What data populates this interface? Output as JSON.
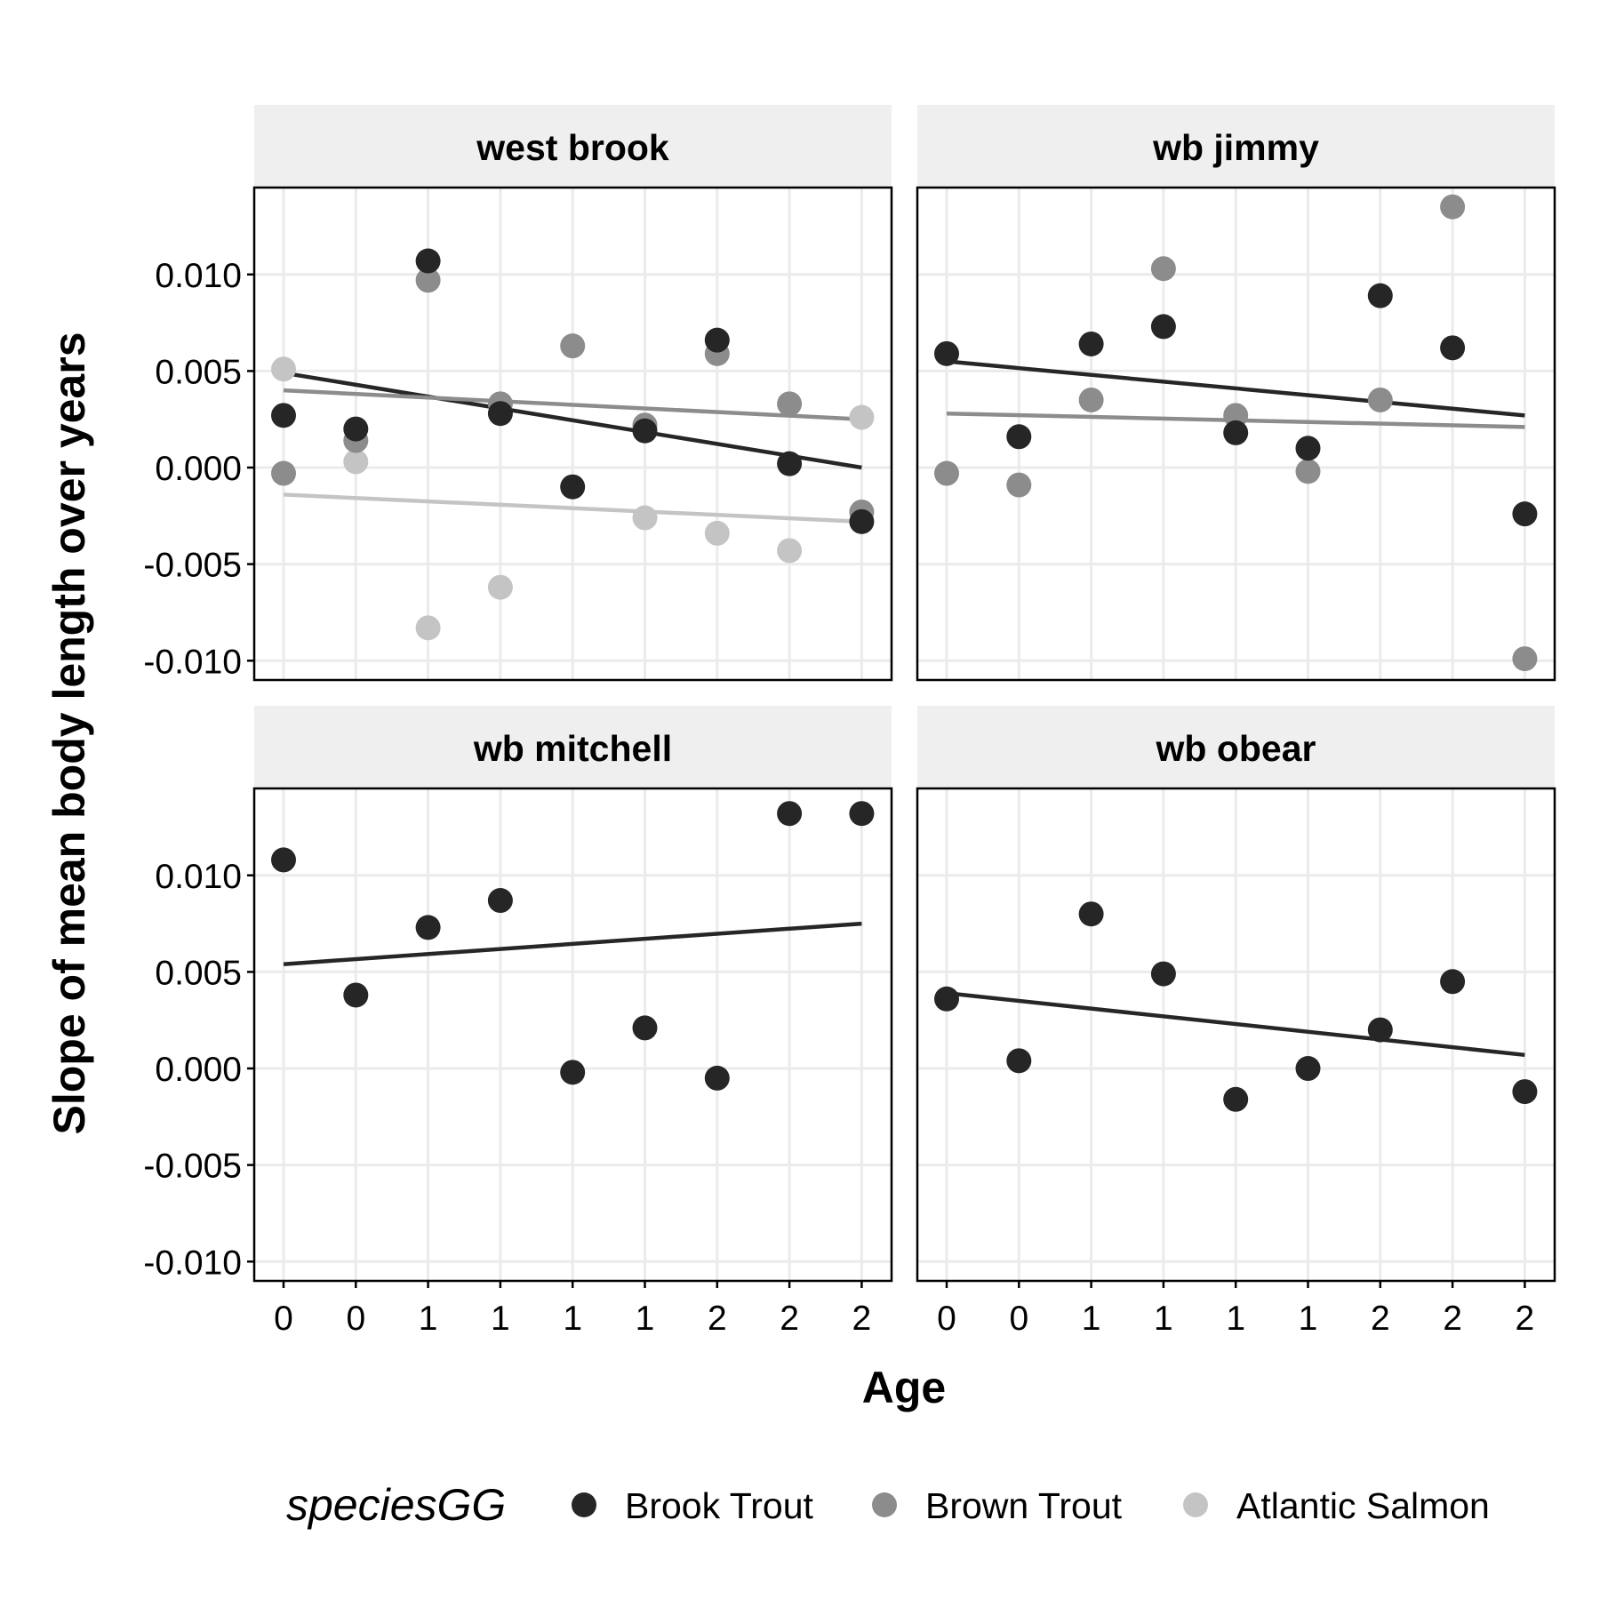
{
  "chart_data": {
    "type": "scatter",
    "xlabel": "Age",
    "ylabel": "Slope of mean body length over years",
    "x_tick_labels": [
      "0",
      "0",
      "1",
      "1",
      "1",
      "1",
      "2",
      "2",
      "2"
    ],
    "y_ticks": [
      -0.01,
      -0.005,
      0.0,
      0.005,
      0.01
    ],
    "y_tick_labels": [
      "-0.010",
      "-0.005",
      "0.000",
      "0.005",
      "0.010"
    ],
    "ylim": [
      -0.011,
      0.0145
    ],
    "grid": true,
    "legend": {
      "title": "speciesGG",
      "position": "bottom",
      "entries": [
        {
          "label": "Brook Trout",
          "color": "#262626"
        },
        {
          "label": "Brown Trout",
          "color": "#8c8c8c"
        },
        {
          "label": "Atlantic Salmon",
          "color": "#c4c4c4"
        }
      ]
    },
    "panels": [
      {
        "title": "west brook",
        "series": [
          {
            "name": "Brook Trout",
            "color": "#262626",
            "values": [
              0.0027,
              0.002,
              0.0107,
              0.0028,
              -0.001,
              0.0019,
              0.0066,
              0.0002,
              -0.0028
            ],
            "trend": [
              0.0049,
              0.0
            ]
          },
          {
            "name": "Brown Trout",
            "color": "#8c8c8c",
            "values": [
              -0.0003,
              0.0014,
              0.0097,
              0.0033,
              0.0063,
              0.0022,
              0.0059,
              0.0033,
              -0.0023
            ],
            "trend": [
              0.004,
              0.0025
            ]
          },
          {
            "name": "Atlantic Salmon",
            "color": "#c4c4c4",
            "values": [
              0.0051,
              0.0003,
              -0.0083,
              -0.0062,
              null,
              -0.0026,
              -0.0034,
              -0.0043,
              0.0026
            ],
            "trend": [
              -0.0014,
              -0.0028
            ]
          }
        ]
      },
      {
        "title": "wb jimmy",
        "series": [
          {
            "name": "Brook Trout",
            "color": "#262626",
            "values": [
              0.0059,
              0.0016,
              0.0064,
              0.0073,
              0.0018,
              0.001,
              0.0089,
              0.0062,
              -0.0024
            ],
            "trend": [
              0.0055,
              0.0027
            ]
          },
          {
            "name": "Brown Trout",
            "color": "#8c8c8c",
            "values": [
              -0.0003,
              -0.0009,
              0.0035,
              0.0103,
              0.0027,
              -0.0002,
              0.0035,
              0.0135,
              -0.0099
            ],
            "trend": [
              0.0028,
              0.0021
            ]
          }
        ]
      },
      {
        "title": "wb mitchell",
        "series": [
          {
            "name": "Brook Trout",
            "color": "#262626",
            "values": [
              0.0108,
              0.0038,
              0.0073,
              0.0087,
              -0.0002,
              0.0021,
              -0.0005,
              0.0132,
              0.0132
            ],
            "trend": [
              0.0054,
              0.0075
            ]
          }
        ]
      },
      {
        "title": "wb obear",
        "series": [
          {
            "name": "Brook Trout",
            "color": "#262626",
            "values": [
              0.0036,
              0.0004,
              0.008,
              0.0049,
              -0.0016,
              0.0,
              0.002,
              0.0045,
              -0.0012
            ],
            "trend": [
              0.0039,
              0.0007
            ]
          }
        ]
      }
    ]
  }
}
